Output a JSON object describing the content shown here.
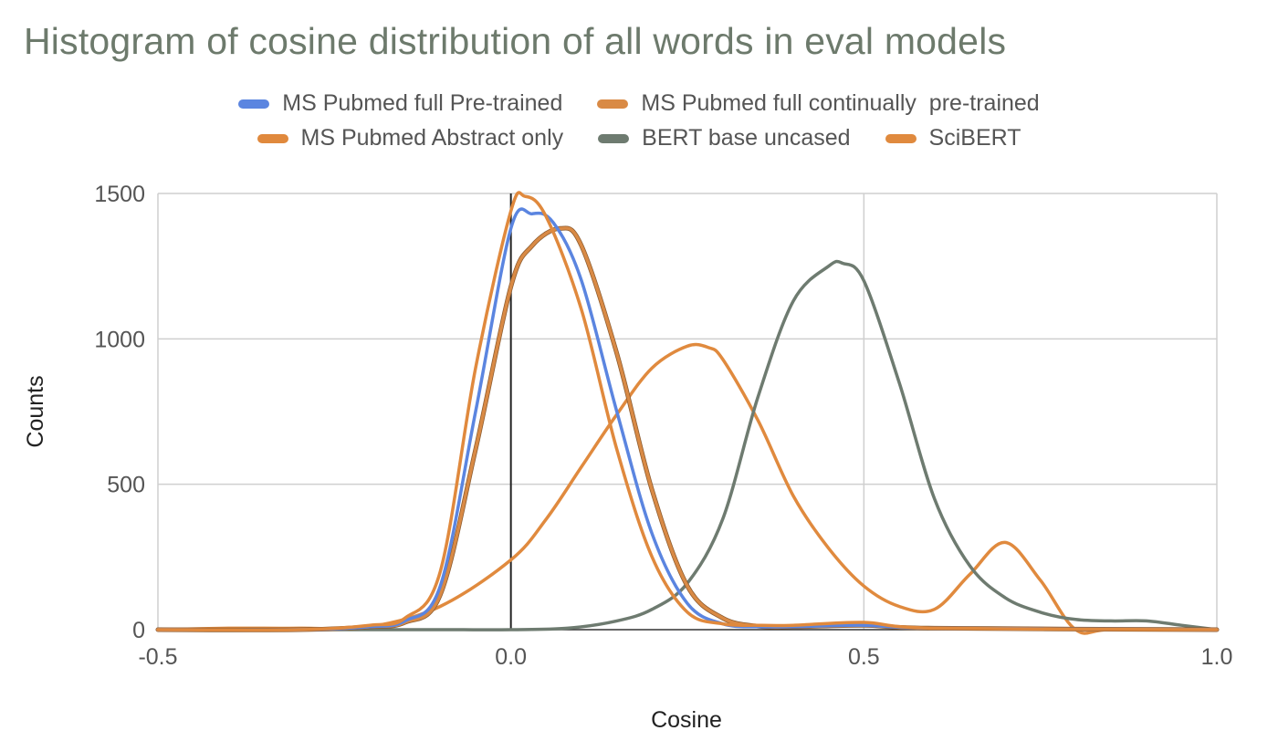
{
  "chart_data": {
    "type": "line",
    "title": "Histogram of cosine distribution of all words in eval models",
    "xlabel": "Cosine",
    "ylabel": "Counts",
    "xlim": [
      -0.5,
      1.0
    ],
    "ylim": [
      0,
      1500
    ],
    "xticks": [
      "-0.5",
      "0.0",
      "0.5",
      "1.0"
    ],
    "yticks": [
      "0",
      "500",
      "1000",
      "1500"
    ],
    "grid": true,
    "legend_position": "top",
    "series": [
      {
        "name": "MS Pubmed full Pre-trained",
        "color": "#5b85e0",
        "x": [
          -0.5,
          -0.3,
          -0.2,
          -0.15,
          -0.1,
          -0.05,
          0.0,
          0.03,
          0.06,
          0.1,
          0.15,
          0.2,
          0.25,
          0.3,
          0.35,
          0.4,
          0.5,
          0.6,
          1.0
        ],
        "y": [
          0,
          0,
          10,
          30,
          150,
          750,
          1380,
          1430,
          1400,
          1200,
          750,
          330,
          90,
          20,
          10,
          10,
          15,
          5,
          0
        ]
      },
      {
        "name": "MS Pubmed full continually  pre-trained",
        "color": "#d98a45",
        "x": [
          -0.5,
          -0.3,
          -0.2,
          -0.15,
          -0.1,
          -0.05,
          0.0,
          0.03,
          0.07,
          0.1,
          0.15,
          0.2,
          0.25,
          0.3,
          0.35,
          0.4,
          0.5,
          0.6,
          1.0
        ],
        "y": [
          0,
          0,
          10,
          25,
          120,
          620,
          1180,
          1320,
          1380,
          1320,
          950,
          480,
          150,
          40,
          12,
          10,
          15,
          5,
          0
        ]
      },
      {
        "name": "MS Pubmed Abstract only",
        "color": "#e0893d",
        "x": [
          -0.5,
          -0.3,
          -0.2,
          -0.15,
          -0.1,
          -0.05,
          0.0,
          0.02,
          0.05,
          0.1,
          0.15,
          0.2,
          0.25,
          0.3,
          0.35,
          0.4,
          0.5,
          0.6,
          1.0
        ],
        "y": [
          0,
          0,
          15,
          40,
          200,
          900,
          1440,
          1490,
          1420,
          1100,
          620,
          250,
          60,
          20,
          15,
          15,
          25,
          5,
          0
        ]
      },
      {
        "name": "BERT base uncased",
        "color": "#6e7b70",
        "x": [
          -0.5,
          -0.3,
          -0.1,
          0.0,
          0.08,
          0.15,
          0.2,
          0.25,
          0.3,
          0.35,
          0.4,
          0.45,
          0.47,
          0.5,
          0.55,
          0.6,
          0.65,
          0.7,
          0.75,
          0.8,
          0.85,
          0.9,
          0.95,
          1.0
        ],
        "y": [
          0,
          0,
          0,
          0,
          5,
          30,
          70,
          160,
          380,
          800,
          1130,
          1250,
          1260,
          1200,
          850,
          450,
          220,
          110,
          60,
          35,
          30,
          30,
          15,
          0
        ]
      },
      {
        "name": "SciBERT",
        "color": "#e08a3e",
        "x": [
          -0.5,
          -0.4,
          -0.3,
          -0.2,
          -0.1,
          0.0,
          0.05,
          0.1,
          0.15,
          0.2,
          0.25,
          0.28,
          0.3,
          0.35,
          0.4,
          0.45,
          0.5,
          0.55,
          0.6,
          0.65,
          0.7,
          0.75,
          0.8,
          0.85,
          1.0
        ],
        "y": [
          0,
          5,
          5,
          10,
          80,
          240,
          380,
          560,
          740,
          900,
          975,
          970,
          930,
          720,
          460,
          280,
          150,
          80,
          70,
          190,
          300,
          170,
          0,
          0,
          0
        ]
      }
    ]
  }
}
